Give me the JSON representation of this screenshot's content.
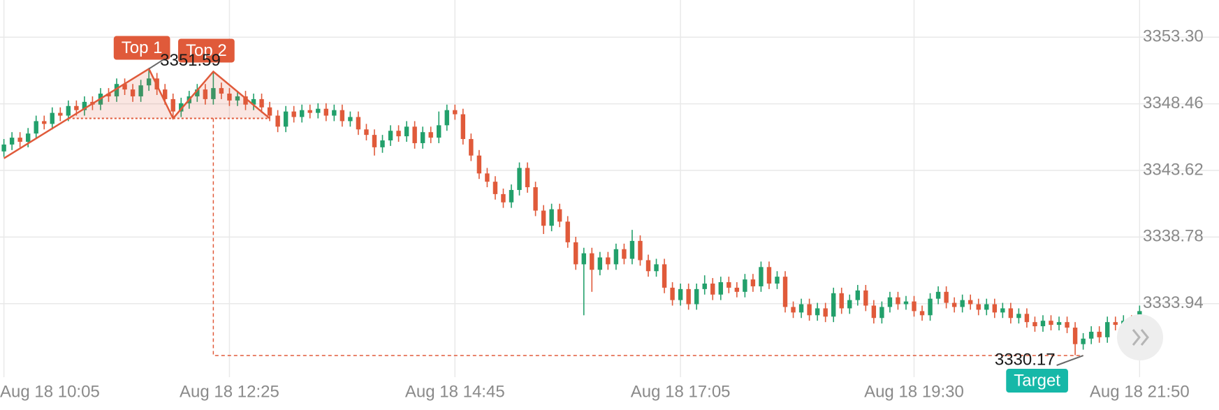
{
  "chart_data": {
    "type": "candlestick",
    "categories": [
      "Aug 18 10:05",
      null,
      null,
      null,
      null,
      null,
      null,
      null,
      null,
      null,
      null,
      null,
      null,
      null,
      null,
      null,
      null,
      null,
      null,
      null,
      null,
      null,
      null,
      null,
      null,
      null,
      null,
      null,
      "Aug 18 12:25",
      null,
      null,
      null,
      null,
      null,
      null,
      null,
      null,
      null,
      null,
      null,
      null,
      null,
      null,
      null,
      null,
      null,
      null,
      null,
      null,
      null,
      null,
      null,
      null,
      null,
      null,
      null,
      "Aug 18 14:45",
      null,
      null,
      null,
      null,
      null,
      null,
      null,
      null,
      null,
      null,
      null,
      null,
      null,
      null,
      null,
      null,
      null,
      null,
      null,
      null,
      null,
      null,
      null,
      null,
      null,
      null,
      null,
      "Aug 18 17:05",
      null,
      null,
      null,
      null,
      null,
      null,
      null,
      null,
      null,
      null,
      null,
      null,
      null,
      null,
      null,
      null,
      null,
      null,
      null,
      null,
      null,
      null,
      null,
      null,
      null,
      null,
      null,
      null,
      "Aug 18 19:30",
      null,
      null,
      null,
      null,
      null,
      null,
      null,
      null,
      null,
      null,
      null,
      null,
      null,
      null,
      null,
      null,
      null,
      null,
      null,
      null,
      null,
      null,
      null,
      null,
      null,
      null,
      null,
      "Aug 18 21:50"
    ],
    "open": [
      3345.0,
      3345.5,
      3346.0,
      3345.7,
      3346.3,
      3347.2,
      3347.0,
      3347.8,
      3347.6,
      3348.3,
      3348.0,
      3348.6,
      3348.4,
      3349.2,
      3349.0,
      3349.9,
      3349.5,
      3349.0,
      3349.8,
      3350.3,
      3349.5,
      3348.8,
      3347.9,
      3348.5,
      3349.0,
      3349.5,
      3348.8,
      3349.6,
      3349.2,
      3348.7,
      3349.0,
      3348.4,
      3348.8,
      3348.2,
      3347.6,
      3346.8,
      3347.9,
      3347.5,
      3348.0,
      3347.8,
      3348.1,
      3347.6,
      3348.0,
      3347.2,
      3347.5,
      3346.6,
      3346.2,
      3345.3,
      3345.8,
      3346.5,
      3346.1,
      3346.8,
      3345.6,
      3346.4,
      3346.0,
      3346.9,
      3348.0,
      3347.7,
      3345.9,
      3344.7,
      3343.4,
      3342.8,
      3341.9,
      3341.3,
      3342.2,
      3343.8,
      3342.4,
      3340.7,
      3339.6,
      3340.8,
      3339.9,
      3338.4,
      3336.8,
      3337.6,
      3336.4,
      3337.3,
      3336.8,
      3337.9,
      3337.2,
      3338.5,
      3337.1,
      3336.3,
      3336.8,
      3335.1,
      3334.2,
      3335.0,
      3333.9,
      3335.0,
      3335.4,
      3334.6,
      3335.5,
      3335.1,
      3334.8,
      3335.7,
      3335.2,
      3336.6,
      3335.4,
      3335.9,
      3333.7,
      3333.3,
      3333.9,
      3333.1,
      3333.6,
      3333.0,
      3334.7,
      3333.6,
      3334.2,
      3334.9,
      3333.8,
      3332.9,
      3333.7,
      3334.4,
      3333.9,
      3334.1,
      3333.4,
      3333.1,
      3334.3,
      3334.8,
      3334.0,
      3333.7,
      3334.2,
      3333.9,
      3333.5,
      3333.9,
      3333.3,
      3333.6,
      3332.9,
      3333.2,
      3332.6,
      3332.3,
      3332.7,
      3332.4,
      3332.6,
      3332.2,
      3331.0,
      3331.4,
      3331.9,
      3331.5,
      3332.6,
      3332.4,
      3332.7,
      3332.2
    ],
    "high": [
      3345.9,
      3346.4,
      3346.4,
      3346.7,
      3347.6,
      3347.6,
      3348.2,
      3348.2,
      3348.7,
      3348.7,
      3349.0,
      3349.0,
      3349.6,
      3349.6,
      3350.3,
      3350.3,
      3349.9,
      3350.2,
      3351.0,
      3350.7,
      3349.9,
      3349.2,
      3348.9,
      3349.4,
      3349.9,
      3349.9,
      3350.8,
      3350.0,
      3349.6,
      3349.4,
      3349.4,
      3349.2,
      3349.2,
      3348.6,
      3348.0,
      3348.3,
      3348.3,
      3348.4,
      3348.4,
      3348.5,
      3348.5,
      3348.4,
      3348.4,
      3347.9,
      3347.9,
      3347.0,
      3346.6,
      3346.2,
      3346.9,
      3346.9,
      3347.2,
      3347.2,
      3346.8,
      3346.8,
      3347.9,
      3348.4,
      3348.4,
      3348.1,
      3346.3,
      3345.1,
      3343.8,
      3343.2,
      3342.3,
      3342.6,
      3344.2,
      3344.2,
      3342.8,
      3341.1,
      3341.2,
      3341.2,
      3340.3,
      3338.8,
      3338.0,
      3338.0,
      3337.7,
      3337.7,
      3338.3,
      3338.3,
      3339.3,
      3338.9,
      3337.5,
      3337.2,
      3337.2,
      3335.5,
      3335.4,
      3335.4,
      3335.4,
      3336.0,
      3335.8,
      3335.9,
      3335.9,
      3335.5,
      3336.1,
      3336.1,
      3337.0,
      3337.0,
      3336.3,
      3336.3,
      3334.1,
      3334.3,
      3334.3,
      3334.0,
      3334.0,
      3335.1,
      3335.1,
      3334.6,
      3335.3,
      3335.3,
      3334.2,
      3334.1,
      3334.8,
      3334.8,
      3334.5,
      3334.5,
      3333.8,
      3334.7,
      3335.2,
      3335.2,
      3334.4,
      3334.6,
      3334.6,
      3334.3,
      3334.3,
      3334.3,
      3334.0,
      3334.0,
      3333.6,
      3333.6,
      3333.0,
      3333.1,
      3333.1,
      3333.0,
      3333.0,
      3332.6,
      3331.8,
      3332.3,
      3332.3,
      3333.0,
      3333.0,
      3333.1,
      3333.1,
      3333.8
    ],
    "low": [
      3344.6,
      3345.1,
      3345.3,
      3345.3,
      3345.9,
      3346.6,
      3346.6,
      3347.2,
      3347.2,
      3347.6,
      3347.6,
      3348.0,
      3348.0,
      3348.6,
      3348.6,
      3349.1,
      3348.6,
      3348.6,
      3349.4,
      3349.1,
      3348.4,
      3347.5,
      3347.5,
      3348.1,
      3348.6,
      3348.4,
      3348.4,
      3348.8,
      3348.3,
      3348.3,
      3348.0,
      3348.0,
      3347.8,
      3347.2,
      3346.4,
      3346.4,
      3347.1,
      3347.1,
      3347.4,
      3347.4,
      3347.2,
      3347.2,
      3346.8,
      3346.8,
      3346.2,
      3345.8,
      3344.7,
      3344.9,
      3345.4,
      3345.7,
      3345.7,
      3345.2,
      3345.2,
      3345.6,
      3345.6,
      3346.5,
      3347.3,
      3345.5,
      3344.3,
      3343.0,
      3342.4,
      3341.5,
      3340.9,
      3340.9,
      3341.8,
      3342.0,
      3340.3,
      3339.0,
      3339.2,
      3339.5,
      3338.0,
      3336.4,
      3333.1,
      3334.8,
      3336.0,
      3336.4,
      3336.4,
      3336.8,
      3336.8,
      3336.7,
      3335.9,
      3335.9,
      3334.7,
      3333.8,
      3333.8,
      3333.5,
      3333.5,
      3334.6,
      3334.2,
      3334.2,
      3334.7,
      3334.4,
      3334.4,
      3334.8,
      3334.8,
      3335.0,
      3335.0,
      3333.3,
      3332.9,
      3332.9,
      3332.7,
      3332.7,
      3332.6,
      3332.6,
      3333.2,
      3333.2,
      3333.8,
      3333.4,
      3332.5,
      3332.5,
      3333.3,
      3333.5,
      3333.5,
      3333.0,
      3332.7,
      3332.7,
      3333.9,
      3333.6,
      3333.3,
      3333.3,
      3333.5,
      3333.1,
      3333.1,
      3332.9,
      3332.9,
      3332.5,
      3332.5,
      3332.2,
      3331.9,
      3331.9,
      3332.0,
      3332.0,
      3331.8,
      3330.2,
      3330.6,
      3331.0,
      3331.1,
      3331.1,
      3332.0,
      3332.0,
      3331.8,
      3331.8
    ],
    "close": [
      3345.5,
      3346.0,
      3345.7,
      3346.3,
      3347.2,
      3347.0,
      3347.8,
      3347.6,
      3348.3,
      3348.0,
      3348.6,
      3348.4,
      3349.2,
      3349.0,
      3349.9,
      3349.5,
      3349.0,
      3349.8,
      3350.3,
      3349.5,
      3348.8,
      3347.9,
      3348.5,
      3349.0,
      3349.5,
      3348.8,
      3349.6,
      3349.2,
      3348.7,
      3349.0,
      3348.4,
      3348.8,
      3348.2,
      3347.6,
      3346.8,
      3347.9,
      3347.5,
      3348.0,
      3347.8,
      3348.1,
      3347.6,
      3348.0,
      3347.2,
      3347.5,
      3346.6,
      3346.2,
      3345.3,
      3345.8,
      3346.5,
      3346.1,
      3346.8,
      3345.6,
      3346.4,
      3346.0,
      3346.9,
      3348.0,
      3347.7,
      3345.9,
      3344.7,
      3343.4,
      3342.8,
      3341.9,
      3341.3,
      3342.2,
      3343.8,
      3342.4,
      3340.7,
      3339.6,
      3340.8,
      3339.9,
      3338.4,
      3336.8,
      3337.6,
      3336.4,
      3337.3,
      3336.8,
      3337.9,
      3337.2,
      3338.5,
      3337.1,
      3336.3,
      3336.8,
      3335.1,
      3334.2,
      3335.0,
      3333.9,
      3335.0,
      3335.4,
      3334.6,
      3335.5,
      3335.1,
      3334.8,
      3335.7,
      3335.2,
      3336.6,
      3335.4,
      3335.9,
      3333.7,
      3333.3,
      3333.9,
      3333.1,
      3333.6,
      3333.0,
      3334.7,
      3333.6,
      3334.2,
      3334.9,
      3333.8,
      3332.9,
      3333.7,
      3334.4,
      3333.9,
      3334.1,
      3333.4,
      3333.1,
      3334.3,
      3334.8,
      3334.0,
      3333.7,
      3334.2,
      3333.9,
      3333.5,
      3333.9,
      3333.3,
      3333.6,
      3332.9,
      3333.2,
      3332.6,
      3332.3,
      3332.7,
      3332.4,
      3332.6,
      3332.2,
      3331.0,
      3331.4,
      3331.9,
      3331.5,
      3332.6,
      3332.4,
      3332.7,
      3332.2,
      3333.4
    ],
    "up_color": "#22a06b",
    "down_color": "#e05a3a",
    "ylim": [
      3328.6,
      3356.0
    ],
    "yticks": [
      {
        "value": 3353.3,
        "label": "3353.30"
      },
      3348.46,
      3343.62,
      3338.78,
      3333.94
    ],
    "grid": true,
    "pattern": {
      "color": "#e05a3a",
      "x": [
        0,
        18,
        21,
        26,
        33
      ],
      "values": [
        3344.5,
        3351.0,
        3347.4,
        3350.8,
        3347.4
      ],
      "neckline": {
        "x": [
          8,
          33
        ],
        "value": 3347.4
      },
      "peaks": [
        {
          "label": "Top 1",
          "x": 18,
          "value": 3351.0
        },
        {
          "label": "Top 2",
          "x": 26,
          "value": 3350.8
        }
      ],
      "peak_price": 3351.59
    },
    "target": {
      "label": "Target",
      "x": 134,
      "value": 3330.17,
      "color": "#16b8a8"
    }
  }
}
